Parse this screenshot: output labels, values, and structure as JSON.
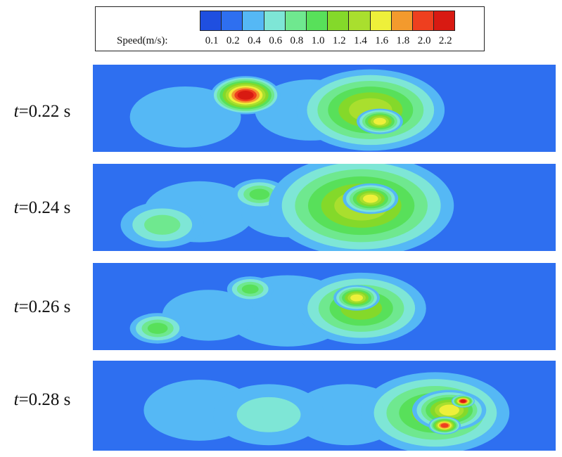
{
  "chart_data": {
    "type": "heatmap",
    "colorbar": {
      "label": "Speed(m/s):",
      "ticks": [
        "0.1",
        "0.2",
        "0.4",
        "0.6",
        "0.8",
        "1.0",
        "1.2",
        "1.4",
        "1.6",
        "1.8",
        "2.0",
        "2.2"
      ],
      "colors": [
        "#1f4fe0",
        "#2e6ff0",
        "#55b8f5",
        "#7ee6d6",
        "#6fe88f",
        "#58e05a",
        "#84d92a",
        "#a9df2e",
        "#eef03a",
        "#f39a2d",
        "#ee3f1f",
        "#d81a12"
      ]
    },
    "panels": [
      {
        "label_t": "t",
        "label_rest": "=0.22 s",
        "blobs": [
          {
            "x": 0.33,
            "y": 0.35,
            "r": 0.075,
            "v": 2.2
          },
          {
            "x": 0.6,
            "y": 0.52,
            "r": 0.16,
            "v": 1.4
          },
          {
            "x": 0.62,
            "y": 0.65,
            "r": 0.05,
            "v": 1.6
          },
          {
            "x": 0.2,
            "y": 0.6,
            "r": 0.12,
            "v": 0.5
          },
          {
            "x": 0.47,
            "y": 0.52,
            "r": 0.12,
            "v": 0.5
          }
        ]
      },
      {
        "label_t": "t",
        "label_rest": "=0.24 s",
        "blobs": [
          {
            "x": 0.58,
            "y": 0.48,
            "r": 0.2,
            "v": 1.4
          },
          {
            "x": 0.6,
            "y": 0.4,
            "r": 0.06,
            "v": 1.6
          },
          {
            "x": 0.36,
            "y": 0.35,
            "r": 0.06,
            "v": 1.0
          },
          {
            "x": 0.15,
            "y": 0.7,
            "r": 0.09,
            "v": 0.8
          },
          {
            "x": 0.23,
            "y": 0.55,
            "r": 0.12,
            "v": 0.5
          },
          {
            "x": 0.42,
            "y": 0.55,
            "r": 0.1,
            "v": 0.5
          }
        ]
      },
      {
        "label_t": "t",
        "label_rest": "=0.26 s",
        "blobs": [
          {
            "x": 0.58,
            "y": 0.52,
            "r": 0.14,
            "v": 1.2
          },
          {
            "x": 0.57,
            "y": 0.4,
            "r": 0.05,
            "v": 1.6
          },
          {
            "x": 0.34,
            "y": 0.3,
            "r": 0.05,
            "v": 1.0
          },
          {
            "x": 0.14,
            "y": 0.75,
            "r": 0.06,
            "v": 1.0
          },
          {
            "x": 0.42,
            "y": 0.55,
            "r": 0.14,
            "v": 0.5
          },
          {
            "x": 0.25,
            "y": 0.6,
            "r": 0.1,
            "v": 0.5
          }
        ]
      },
      {
        "label_t": "t",
        "label_rest": "=0.28 s",
        "blobs": [
          {
            "x": 0.74,
            "y": 0.58,
            "r": 0.16,
            "v": 1.2
          },
          {
            "x": 0.77,
            "y": 0.55,
            "r": 0.08,
            "v": 1.6
          },
          {
            "x": 0.8,
            "y": 0.45,
            "r": 0.025,
            "v": 2.2
          },
          {
            "x": 0.76,
            "y": 0.72,
            "r": 0.035,
            "v": 2.0
          },
          {
            "x": 0.38,
            "y": 0.6,
            "r": 0.12,
            "v": 0.6
          },
          {
            "x": 0.23,
            "y": 0.55,
            "r": 0.12,
            "v": 0.5
          },
          {
            "x": 0.55,
            "y": 0.6,
            "r": 0.12,
            "v": 0.5
          }
        ]
      }
    ]
  }
}
